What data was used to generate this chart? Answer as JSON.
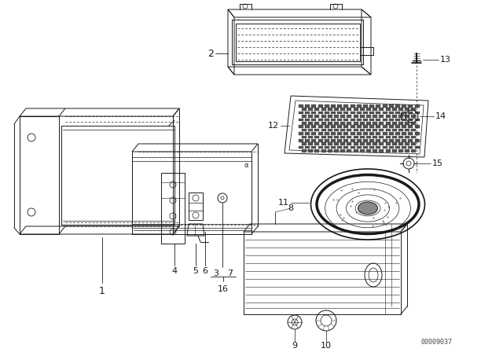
{
  "bg_color": "#ffffff",
  "lc": "#1a1a1a",
  "watermark": "00009037",
  "lw": 0.7
}
